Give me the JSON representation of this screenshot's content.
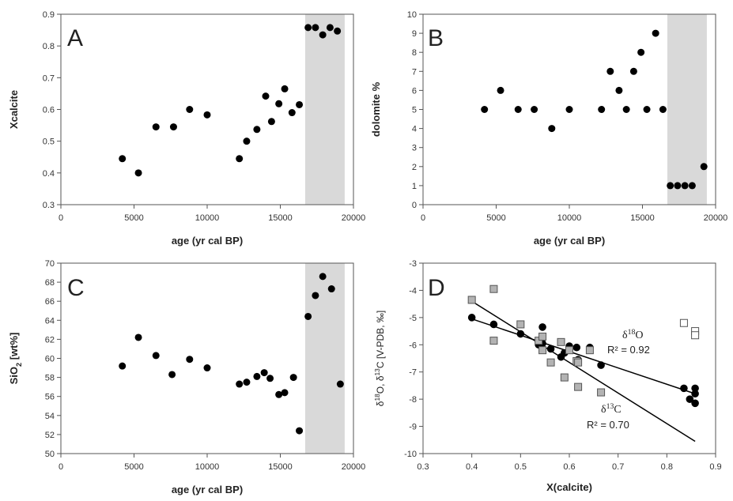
{
  "chart_data": [
    {
      "panel": "A",
      "type": "scatter",
      "xlabel": "age (yr cal BP)",
      "ylabel": "Xcalcite",
      "xlim": [
        0,
        20000
      ],
      "ylim": [
        0.3,
        0.9
      ],
      "xticks": [
        0,
        5000,
        10000,
        15000,
        20000
      ],
      "xtick_labels": [
        "0",
        "5000",
        "10000",
        "15000",
        "20000"
      ],
      "yticks": [
        0.3,
        0.4,
        0.5,
        0.6,
        0.7,
        0.8,
        0.9
      ],
      "ytick_labels": [
        "0.3",
        "0.4",
        "0.5",
        "0.6",
        "0.7",
        "0.8",
        "0.9"
      ],
      "shaded_x_range": [
        16700,
        19400
      ],
      "shade_color": "#d9d9d9",
      "marker_color": "#000000",
      "points": [
        [
          4200,
          0.445
        ],
        [
          5300,
          0.4
        ],
        [
          6500,
          0.545
        ],
        [
          7700,
          0.545
        ],
        [
          8800,
          0.6
        ],
        [
          10000,
          0.583
        ],
        [
          12200,
          0.445
        ],
        [
          12700,
          0.5
        ],
        [
          13400,
          0.537
        ],
        [
          14000,
          0.642
        ],
        [
          14400,
          0.562
        ],
        [
          14900,
          0.618
        ],
        [
          15300,
          0.665
        ],
        [
          15800,
          0.59
        ],
        [
          16300,
          0.615
        ],
        [
          16900,
          0.858
        ],
        [
          17400,
          0.858
        ],
        [
          17900,
          0.835
        ],
        [
          18400,
          0.858
        ],
        [
          18900,
          0.847
        ]
      ]
    },
    {
      "panel": "B",
      "type": "scatter",
      "xlabel": "age (yr cal BP)",
      "ylabel": "dolomite %",
      "xlim": [
        0,
        20000
      ],
      "ylim": [
        0,
        10
      ],
      "xticks": [
        0,
        5000,
        10000,
        15000,
        20000
      ],
      "xtick_labels": [
        "0",
        "5000",
        "10000",
        "15000",
        "20000"
      ],
      "yticks": [
        0,
        1,
        2,
        3,
        4,
        5,
        6,
        7,
        8,
        9,
        10
      ],
      "ytick_labels": [
        "0",
        "1",
        "2",
        "3",
        "4",
        "5",
        "6",
        "7",
        "8",
        "9",
        "10"
      ],
      "shaded_x_range": [
        16700,
        19400
      ],
      "shade_color": "#d9d9d9",
      "marker_color": "#000000",
      "points": [
        [
          4200,
          5
        ],
        [
          5300,
          6
        ],
        [
          6500,
          5
        ],
        [
          7600,
          5
        ],
        [
          8800,
          4
        ],
        [
          10000,
          5
        ],
        [
          12200,
          5
        ],
        [
          12800,
          7
        ],
        [
          13400,
          6
        ],
        [
          13900,
          5
        ],
        [
          14400,
          7
        ],
        [
          14900,
          8
        ],
        [
          15300,
          5
        ],
        [
          15900,
          9
        ],
        [
          16400,
          5
        ],
        [
          16900,
          1
        ],
        [
          17400,
          1
        ],
        [
          17900,
          1
        ],
        [
          18400,
          1
        ],
        [
          19200,
          2
        ]
      ]
    },
    {
      "panel": "C",
      "type": "scatter",
      "xlabel": "age (yr cal BP)",
      "ylabel": "SiO2 [wt%]",
      "xlim": [
        0,
        20000
      ],
      "ylim": [
        50,
        70
      ],
      "xticks": [
        0,
        5000,
        10000,
        15000,
        20000
      ],
      "xtick_labels": [
        "0",
        "5000",
        "10000",
        "15000",
        "20000"
      ],
      "yticks": [
        50,
        52,
        54,
        56,
        58,
        60,
        62,
        64,
        66,
        68,
        70
      ],
      "ytick_labels": [
        "50",
        "52",
        "54",
        "56",
        "58",
        "60",
        "62",
        "64",
        "66",
        "68",
        "70"
      ],
      "shaded_x_range": [
        16700,
        19400
      ],
      "shade_color": "#d9d9d9",
      "marker_color": "#000000",
      "points": [
        [
          4200,
          59.2
        ],
        [
          5300,
          62.2
        ],
        [
          6500,
          60.3
        ],
        [
          7600,
          58.3
        ],
        [
          8800,
          59.9
        ],
        [
          10000,
          59.0
        ],
        [
          12200,
          57.3
        ],
        [
          12700,
          57.5
        ],
        [
          13400,
          58.1
        ],
        [
          13900,
          58.5
        ],
        [
          14300,
          57.9
        ],
        [
          14900,
          56.2
        ],
        [
          15300,
          56.4
        ],
        [
          15900,
          58.0
        ],
        [
          16300,
          52.4
        ],
        [
          16900,
          64.4
        ],
        [
          17400,
          66.6
        ],
        [
          17900,
          68.6
        ],
        [
          18500,
          67.3
        ],
        [
          19100,
          57.3
        ]
      ]
    },
    {
      "panel": "D",
      "type": "scatter",
      "xlabel": "X(calcite)",
      "ylabel": "δ18O, δ13C [V-PDB, ‰]",
      "xlim": [
        0.3,
        0.9
      ],
      "ylim": [
        -10,
        -3
      ],
      "xticks": [
        0.3,
        0.4,
        0.5,
        0.6,
        0.7,
        0.8,
        0.9
      ],
      "xtick_labels": [
        "0.3",
        "0.4",
        "0.5",
        "0.6",
        "0.7",
        "0.8",
        "0.9"
      ],
      "yticks": [
        -10,
        -9,
        -8,
        -7,
        -6,
        -5,
        -4,
        -3
      ],
      "ytick_labels": [
        "-10",
        "-9",
        "-8",
        "-7",
        "-6",
        "-5",
        "-4",
        "-3"
      ],
      "series": [
        {
          "label": "δ18O",
          "marker": "circle",
          "fill": "#000000",
          "stroke": "#000000",
          "points": [
            [
              0.4,
              -5.0
            ],
            [
              0.445,
              -5.25
            ],
            [
              0.5,
              -5.6
            ],
            [
              0.537,
              -6.0
            ],
            [
              0.545,
              -5.95
            ],
            [
              0.545,
              -5.35
            ],
            [
              0.562,
              -6.15
            ],
            [
              0.583,
              -6.45
            ],
            [
              0.59,
              -6.3
            ],
            [
              0.6,
              -6.05
            ],
            [
              0.615,
              -6.1
            ],
            [
              0.618,
              -6.55
            ],
            [
              0.642,
              -6.1
            ],
            [
              0.665,
              -6.75
            ],
            [
              0.835,
              -7.6
            ],
            [
              0.847,
              -8.0
            ],
            [
              0.858,
              -7.6
            ],
            [
              0.858,
              -7.8
            ],
            [
              0.858,
              -8.15
            ]
          ],
          "fit_line": [
            [
              0.4,
              -5.05
            ],
            [
              0.858,
              -7.8
            ]
          ],
          "r2_text": "R² = 0.92"
        },
        {
          "label": "δ13C",
          "marker": "square",
          "fill": "#b3b3b3",
          "stroke": "#555555",
          "points": [
            [
              0.4,
              -4.35
            ],
            [
              0.445,
              -3.95
            ],
            [
              0.445,
              -5.85
            ],
            [
              0.5,
              -5.25
            ],
            [
              0.537,
              -5.85
            ],
            [
              0.545,
              -6.2
            ],
            [
              0.545,
              -5.7
            ],
            [
              0.562,
              -6.65
            ],
            [
              0.583,
              -5.9
            ],
            [
              0.59,
              -7.2
            ],
            [
              0.6,
              -6.2
            ],
            [
              0.615,
              -6.6
            ],
            [
              0.618,
              -7.55
            ],
            [
              0.618,
              -6.65
            ],
            [
              0.642,
              -6.2
            ],
            [
              0.665,
              -7.75
            ]
          ],
          "fit_line": [
            [
              0.4,
              -4.4
            ],
            [
              0.858,
              -9.55
            ]
          ],
          "r2_text": "R² = 0.70"
        },
        {
          "label": "",
          "marker": "square",
          "fill": "#ffffff",
          "stroke": "#555555",
          "points": [
            [
              0.835,
              -5.2
            ],
            [
              0.858,
              -5.5
            ],
            [
              0.858,
              -5.65
            ]
          ]
        }
      ]
    }
  ]
}
